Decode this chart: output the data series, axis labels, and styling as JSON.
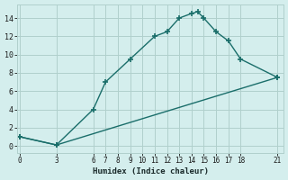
{
  "xlabel": "Humidex (Indice chaleur)",
  "ylabel": "",
  "bg_color": "#d4eeed",
  "line_color": "#1a6e6a",
  "grid_color": "#b0d0cc",
  "x_ticks": [
    0,
    3,
    6,
    7,
    8,
    9,
    10,
    11,
    12,
    13,
    14,
    15,
    16,
    17,
    18,
    21
  ],
  "y_ticks": [
    0,
    2,
    4,
    6,
    8,
    10,
    12,
    14
  ],
  "xlim": [
    -0.2,
    21.5
  ],
  "ylim": [
    -0.8,
    15.5
  ],
  "curve1_x": [
    0,
    3,
    6,
    7,
    9,
    11,
    12,
    13,
    14,
    14.5,
    15,
    16,
    17,
    18,
    21
  ],
  "curve1_y": [
    1,
    0.1,
    4,
    7,
    9.5,
    12,
    12.5,
    14,
    14.5,
    14.7,
    14,
    12.5,
    11.5,
    9.5,
    7.5
  ],
  "curve2_x": [
    0,
    3,
    21
  ],
  "curve2_y": [
    1,
    0.1,
    7.5
  ],
  "marker": "+",
  "marker_size": 4,
  "marker_lw": 1.2,
  "line_width": 1.0
}
